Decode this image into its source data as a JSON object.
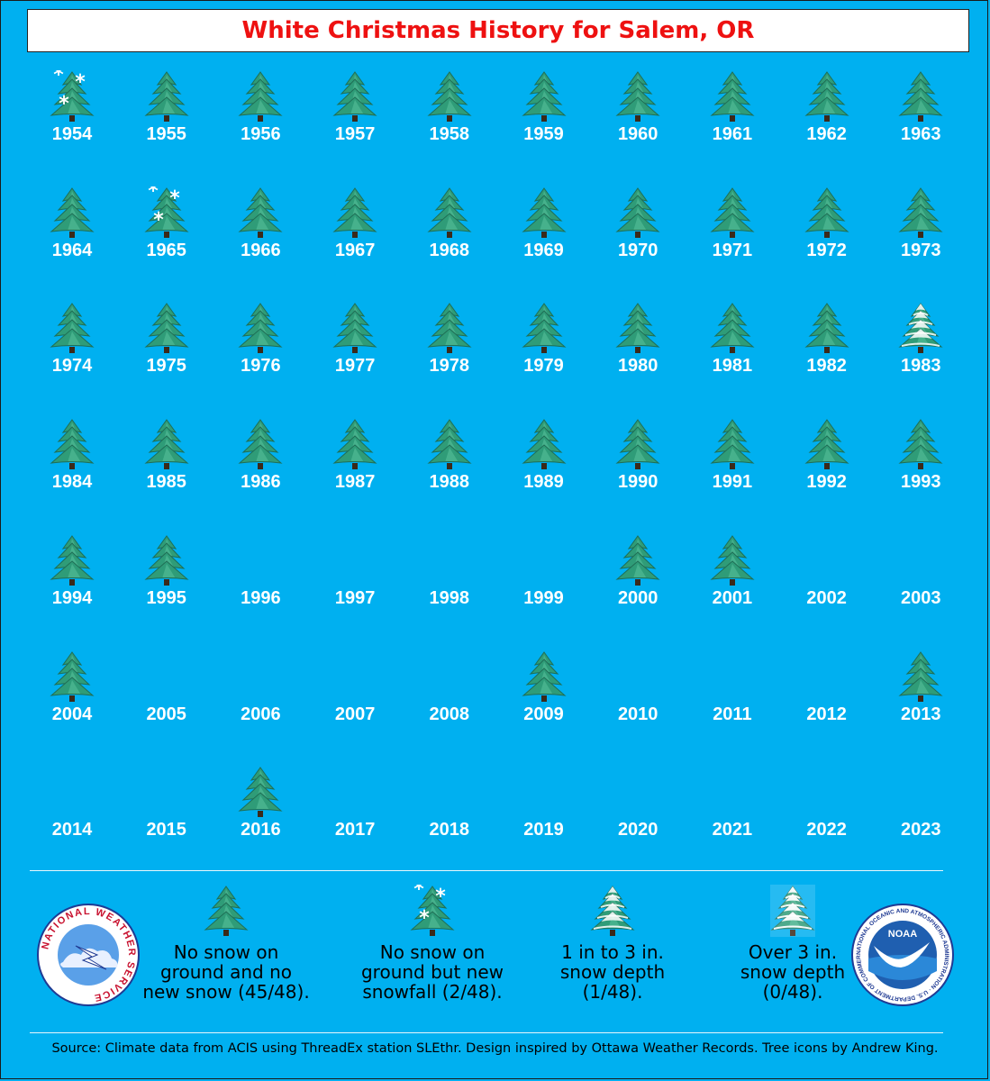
{
  "title": "White Christmas History for Salem, OR",
  "colors": {
    "background": "#00b0f0",
    "title": "#ee1111",
    "year_text": "#ffffff"
  },
  "icons": {
    "plain": "plain-tree-icon",
    "flakes": "tree-with-snowflakes-icon",
    "snow_light": "lightly-snowy-tree-icon",
    "snow_heavy": "heavily-snowy-tree-icon"
  },
  "years": [
    {
      "year": "1954",
      "icon": "flakes"
    },
    {
      "year": "1955",
      "icon": "plain"
    },
    {
      "year": "1956",
      "icon": "plain"
    },
    {
      "year": "1957",
      "icon": "plain"
    },
    {
      "year": "1958",
      "icon": "plain"
    },
    {
      "year": "1959",
      "icon": "plain"
    },
    {
      "year": "1960",
      "icon": "plain"
    },
    {
      "year": "1961",
      "icon": "plain"
    },
    {
      "year": "1962",
      "icon": "plain"
    },
    {
      "year": "1963",
      "icon": "plain"
    },
    {
      "year": "1964",
      "icon": "plain"
    },
    {
      "year": "1965",
      "icon": "flakes"
    },
    {
      "year": "1966",
      "icon": "plain"
    },
    {
      "year": "1967",
      "icon": "plain"
    },
    {
      "year": "1968",
      "icon": "plain"
    },
    {
      "year": "1969",
      "icon": "plain"
    },
    {
      "year": "1970",
      "icon": "plain"
    },
    {
      "year": "1971",
      "icon": "plain"
    },
    {
      "year": "1972",
      "icon": "plain"
    },
    {
      "year": "1973",
      "icon": "plain"
    },
    {
      "year": "1974",
      "icon": "plain"
    },
    {
      "year": "1975",
      "icon": "plain"
    },
    {
      "year": "1976",
      "icon": "plain"
    },
    {
      "year": "1977",
      "icon": "plain"
    },
    {
      "year": "1978",
      "icon": "plain"
    },
    {
      "year": "1979",
      "icon": "plain"
    },
    {
      "year": "1980",
      "icon": "plain"
    },
    {
      "year": "1981",
      "icon": "plain"
    },
    {
      "year": "1982",
      "icon": "plain"
    },
    {
      "year": "1983",
      "icon": "snow_light"
    },
    {
      "year": "1984",
      "icon": "plain"
    },
    {
      "year": "1985",
      "icon": "plain"
    },
    {
      "year": "1986",
      "icon": "plain"
    },
    {
      "year": "1987",
      "icon": "plain"
    },
    {
      "year": "1988",
      "icon": "plain"
    },
    {
      "year": "1989",
      "icon": "plain"
    },
    {
      "year": "1990",
      "icon": "plain"
    },
    {
      "year": "1991",
      "icon": "plain"
    },
    {
      "year": "1992",
      "icon": "plain"
    },
    {
      "year": "1993",
      "icon": "plain"
    },
    {
      "year": "1994",
      "icon": "plain"
    },
    {
      "year": "1995",
      "icon": "plain"
    },
    {
      "year": "1996",
      "icon": ""
    },
    {
      "year": "1997",
      "icon": ""
    },
    {
      "year": "1998",
      "icon": ""
    },
    {
      "year": "1999",
      "icon": ""
    },
    {
      "year": "2000",
      "icon": "plain"
    },
    {
      "year": "2001",
      "icon": "plain"
    },
    {
      "year": "2002",
      "icon": ""
    },
    {
      "year": "2003",
      "icon": ""
    },
    {
      "year": "2004",
      "icon": "plain"
    },
    {
      "year": "2005",
      "icon": ""
    },
    {
      "year": "2006",
      "icon": ""
    },
    {
      "year": "2007",
      "icon": ""
    },
    {
      "year": "2008",
      "icon": ""
    },
    {
      "year": "2009",
      "icon": "plain"
    },
    {
      "year": "2010",
      "icon": ""
    },
    {
      "year": "2011",
      "icon": ""
    },
    {
      "year": "2012",
      "icon": ""
    },
    {
      "year": "2013",
      "icon": "plain"
    },
    {
      "year": "2014",
      "icon": ""
    },
    {
      "year": "2015",
      "icon": ""
    },
    {
      "year": "2016",
      "icon": "plain"
    },
    {
      "year": "2017",
      "icon": ""
    },
    {
      "year": "2018",
      "icon": ""
    },
    {
      "year": "2019",
      "icon": ""
    },
    {
      "year": "2020",
      "icon": ""
    },
    {
      "year": "2021",
      "icon": ""
    },
    {
      "year": "2022",
      "icon": ""
    },
    {
      "year": "2023",
      "icon": ""
    }
  ],
  "legend": [
    {
      "icon": "plain",
      "lines": [
        "No snow on",
        "ground and no",
        "new snow (45/48)."
      ]
    },
    {
      "icon": "flakes",
      "lines": [
        "No snow on",
        "ground but new",
        "snowfall (2/48)."
      ]
    },
    {
      "icon": "snow_light",
      "lines": [
        "1 in to 3 in.",
        "snow depth",
        "(1/48)."
      ]
    },
    {
      "icon": "snow_heavy",
      "lines": [
        "Over 3 in.",
        "snow depth",
        "(0/48)."
      ]
    }
  ],
  "logos": {
    "nws_text": "NATIONAL WEATHER SERVICE",
    "noaa_center": "NOAA",
    "noaa_ring": "NATIONAL OCEANIC AND ATMOSPHERIC ADMINISTRATION · U.S. DEPARTMENT OF COMMERCE ·"
  },
  "source": "Source: Climate data from ACIS using ThreadEx station SLEthr. Design inspired by Ottawa Weather Records. Tree icons by Andrew King."
}
